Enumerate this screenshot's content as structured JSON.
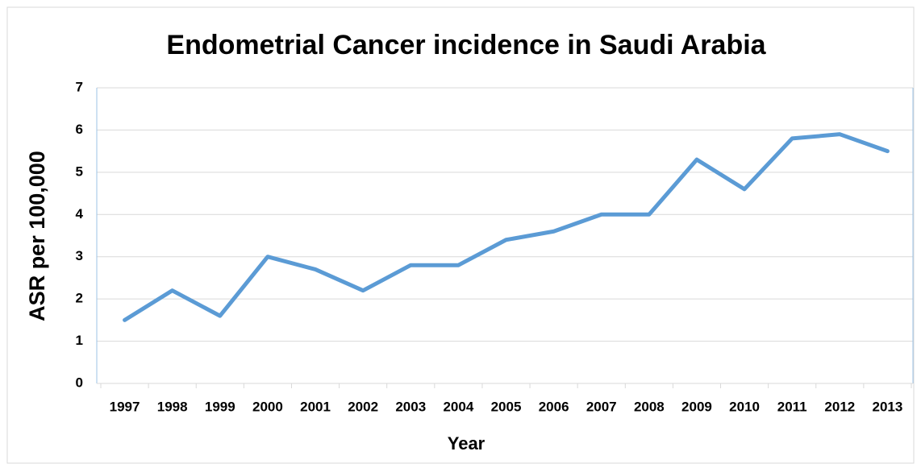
{
  "chart_data": {
    "type": "line",
    "title": "Endometrial Cancer incidence in Saudi Arabia",
    "x_label": "Year",
    "y_label": "ASR per 100,000",
    "categories": [
      "1997",
      "1998",
      "1999",
      "2000",
      "2001",
      "2002",
      "2003",
      "2004",
      "2005",
      "2006",
      "2007",
      "2008",
      "2009",
      "2010",
      "2011",
      "2012",
      "2013"
    ],
    "values": [
      1.5,
      2.2,
      1.6,
      3.0,
      2.7,
      2.2,
      2.8,
      2.8,
      3.4,
      3.6,
      4.0,
      4.0,
      5.3,
      4.6,
      5.8,
      5.9,
      5.5
    ],
    "color": "#5b9bd5",
    "ylim": [
      0,
      7
    ],
    "yticks": [
      0,
      1,
      2,
      3,
      4,
      5,
      6,
      7
    ],
    "grid": true
  }
}
